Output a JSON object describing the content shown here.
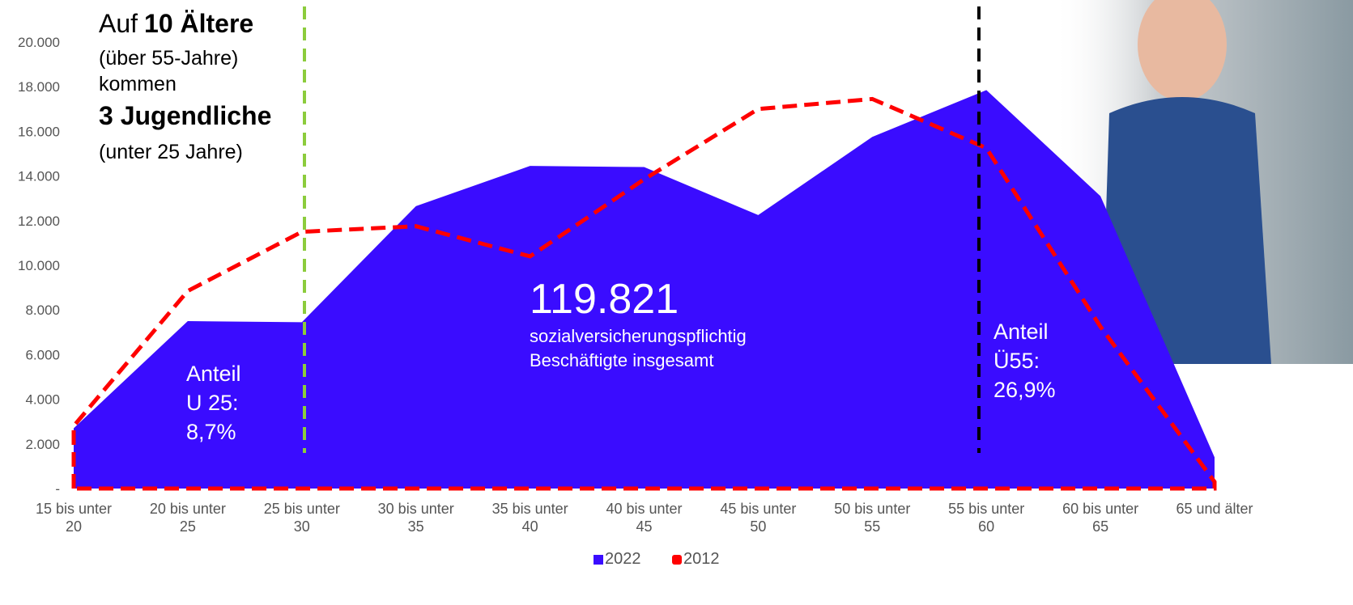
{
  "chart_data": {
    "type": "area",
    "categories": [
      "15 bis unter 20",
      "20 bis unter 25",
      "25 bis unter 30",
      "30 bis unter 35",
      "35 bis unter 40",
      "40 bis unter 45",
      "45 bis unter 50",
      "50 bis unter 55",
      "55 bis unter 60",
      "60 bis unter 65",
      "65 und älter"
    ],
    "series": [
      {
        "name": "2022",
        "color": "#3a0cff",
        "values": [
          2700,
          7500,
          7450,
          12650,
          14450,
          14400,
          12250,
          15750,
          17850,
          13100,
          1400
        ]
      },
      {
        "name": "2012",
        "color": "#ff0000",
        "values": [
          2800,
          8850,
          11500,
          11750,
          10400,
          13850,
          17000,
          17450,
          15250,
          7250,
          300
        ]
      }
    ],
    "ylim": [
      0,
      20000
    ],
    "yticks": [
      {
        "value": 0,
        "label": "-"
      },
      {
        "value": 2000,
        "label": "2.000"
      },
      {
        "value": 4000,
        "label": "4.000"
      },
      {
        "value": 6000,
        "label": "6.000"
      },
      {
        "value": 8000,
        "label": "8.000"
      },
      {
        "value": 10000,
        "label": "10.000"
      },
      {
        "value": 12000,
        "label": "12.000"
      },
      {
        "value": 14000,
        "label": "14.000"
      },
      {
        "value": 16000,
        "label": "16.000"
      },
      {
        "value": 18000,
        "label": "18.000"
      },
      {
        "value": 20000,
        "label": "20.000"
      }
    ],
    "headline": [
      "Auf",
      "10 Ältere",
      "(über 55-Jahre)",
      "kommen",
      "3 Jugendliche",
      "(unter 25 Jahre)"
    ],
    "total": "119.821",
    "total_caption": [
      "sozialversicherungspflichtig",
      "Beschäftigte insgesamt"
    ],
    "share_u25": [
      "Anteil",
      "U 25:",
      "8,7%"
    ],
    "share_ue55": [
      "Anteil",
      "Ü55:",
      "26,9%"
    ]
  }
}
